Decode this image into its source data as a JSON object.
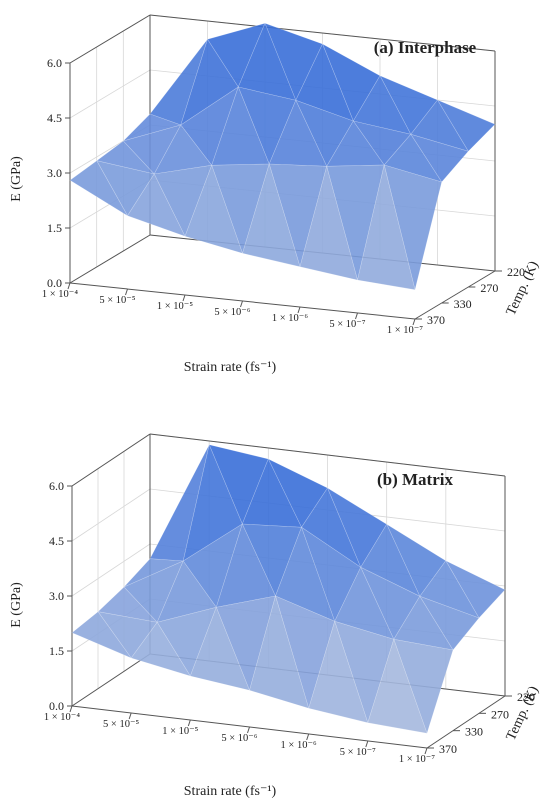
{
  "chart_data": [
    {
      "type": "surface",
      "title": "(a) Interphase",
      "xlabel": "Strain rate  (fs⁻¹)",
      "ylabel": "Temp. (K)",
      "zlabel": "E (GPa)",
      "x_ticks": [
        "1 × 10⁻⁴",
        "5 × 10⁻⁵",
        "1 × 10⁻⁵",
        "5 × 10⁻⁶",
        "1 × 10⁻⁶",
        "5 × 10⁻⁷",
        "1 × 10⁻⁷"
      ],
      "y_ticks": [
        "220",
        "270",
        "330",
        "370"
      ],
      "z_ticks": [
        "0.0",
        "1.5",
        "3.0",
        "4.5",
        "6.0"
      ],
      "zlim": [
        0,
        6
      ],
      "surface_color": "#3a6fd8",
      "values": [
        [
          3.3,
          5.5,
          6.1,
          5.7,
          5.0,
          4.5,
          4.0
        ],
        [
          3.0,
          3.6,
          4.8,
          4.6,
          4.2,
          4.0,
          3.7
        ],
        [
          2.9,
          2.7,
          3.1,
          3.3,
          3.4,
          3.6,
          3.3
        ],
        [
          2.8,
          2.0,
          1.6,
          1.3,
          1.1,
          0.9,
          0.8
        ]
      ]
    },
    {
      "type": "surface",
      "title": "(b) Matrix",
      "xlabel": "Strain rate  (fs⁻¹)",
      "ylabel": "Temp. (K)",
      "zlabel": "E (GPa)",
      "x_ticks": [
        "1 × 10⁻⁴",
        "5 × 10⁻⁵",
        "1 × 10⁻⁵",
        "5 × 10⁻⁶",
        "1 × 10⁻⁶",
        "5 × 10⁻⁷",
        "1 × 10⁻⁷"
      ],
      "y_ticks": [
        "220",
        "270",
        "330",
        "370"
      ],
      "z_ticks": [
        "0.0",
        "1.5",
        "3.0",
        "4.5",
        "6.0"
      ],
      "zlim": [
        0,
        6
      ],
      "surface_color": "#3a6fd8",
      "values": [
        [
          2.6,
          5.9,
          5.7,
          5.1,
          4.3,
          3.5,
          2.9
        ],
        [
          2.3,
          3.2,
          4.4,
          4.5,
          3.6,
          3.0,
          2.6
        ],
        [
          2.1,
          2.0,
          2.6,
          3.1,
          2.6,
          2.3,
          2.2
        ],
        [
          2.0,
          1.5,
          1.2,
          1.0,
          0.7,
          0.5,
          0.4
        ]
      ]
    }
  ]
}
